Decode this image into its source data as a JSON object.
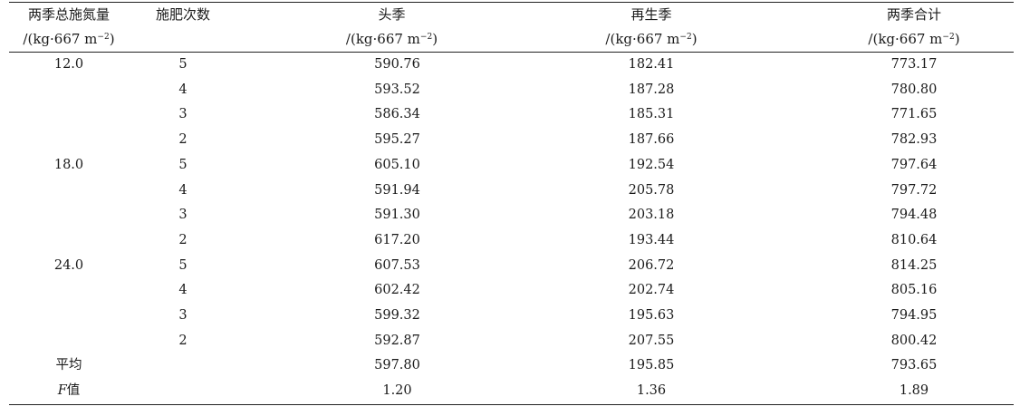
{
  "table": {
    "headers": [
      {
        "line1": "两季总施氮量",
        "line2_prefix": "/(kg·667 m",
        "line2_exp": "−2",
        "line2_suffix": ")"
      },
      {
        "line1": "施肥次数",
        "line2_prefix": "",
        "line2_exp": "",
        "line2_suffix": ""
      },
      {
        "line1": "头季",
        "line2_prefix": "/(kg·667 m",
        "line2_exp": "−2",
        "line2_suffix": ")"
      },
      {
        "line1": "再生季",
        "line2_prefix": "/(kg·667 m",
        "line2_exp": "−2",
        "line2_suffix": ")"
      },
      {
        "line1": "两季合计",
        "line2_prefix": "/(kg·667 m",
        "line2_exp": "−2",
        "line2_suffix": ")"
      }
    ],
    "rows": [
      {
        "group": "12.0",
        "times": "5",
        "first": "590.76",
        "regen": "182.41",
        "total": "773.17"
      },
      {
        "group": "",
        "times": "4",
        "first": "593.52",
        "regen": "187.28",
        "total": "780.80"
      },
      {
        "group": "",
        "times": "3",
        "first": "586.34",
        "regen": "185.31",
        "total": "771.65"
      },
      {
        "group": "",
        "times": "2",
        "first": "595.27",
        "regen": "187.66",
        "total": "782.93"
      },
      {
        "group": "18.0",
        "times": "5",
        "first": "605.10",
        "regen": "192.54",
        "total": "797.64"
      },
      {
        "group": "",
        "times": "4",
        "first": "591.94",
        "regen": "205.78",
        "total": "797.72"
      },
      {
        "group": "",
        "times": "3",
        "first": "591.30",
        "regen": "203.18",
        "total": "794.48"
      },
      {
        "group": "",
        "times": "2",
        "first": "617.20",
        "regen": "193.44",
        "total": "810.64"
      },
      {
        "group": "24.0",
        "times": "5",
        "first": "607.53",
        "regen": "206.72",
        "total": "814.25"
      },
      {
        "group": "",
        "times": "4",
        "first": "602.42",
        "regen": "202.74",
        "total": "805.16"
      },
      {
        "group": "",
        "times": "3",
        "first": "599.32",
        "regen": "195.63",
        "total": "794.95"
      },
      {
        "group": "",
        "times": "2",
        "first": "592.87",
        "regen": "207.55",
        "total": "800.42"
      }
    ],
    "summary": {
      "mean_label": "平均",
      "mean": {
        "first": "597.80",
        "regen": "195.85",
        "total": "793.65"
      },
      "f_label_italic": "F",
      "f_label_text": "值",
      "f": {
        "first": "1.20",
        "regen": "1.36",
        "total": "1.89"
      }
    }
  }
}
